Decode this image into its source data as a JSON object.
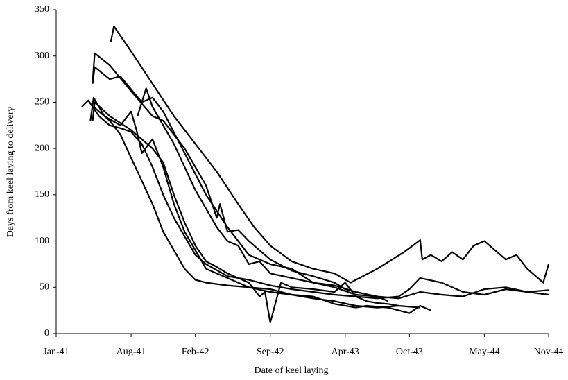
{
  "chart_data": {
    "type": "line",
    "x_label": "Date of keel laying",
    "y_label": "Days from keel laying to delivery",
    "color": "#000000",
    "xlim": [
      0,
      46
    ],
    "xticks": [
      {
        "value": 0,
        "label": "Jan-41"
      },
      {
        "value": 7,
        "label": "Aug-41"
      },
      {
        "value": 13,
        "label": "Feb-42"
      },
      {
        "value": 20,
        "label": "Sep-42"
      },
      {
        "value": 27,
        "label": "Apr-43"
      },
      {
        "value": 33,
        "label": "Oct-43"
      },
      {
        "value": 40,
        "label": "May-44"
      },
      {
        "value": 46,
        "label": "Nov-44"
      }
    ],
    "ylim": [
      0,
      350
    ],
    "yticks": [
      0,
      50,
      100,
      150,
      200,
      250,
      300,
      350
    ],
    "series": [
      {
        "x": [
          5.1,
          5.4,
          7,
          9,
          11,
          13,
          15,
          17,
          18.5,
          20,
          22,
          24,
          26,
          27.5,
          30,
          32.5,
          34,
          34.2,
          35,
          36,
          37,
          38,
          39,
          40,
          41,
          42,
          43,
          44,
          45,
          45.5,
          46
        ],
        "values": [
          315,
          332,
          305,
          270,
          235,
          205,
          175,
          140,
          115,
          95,
          78,
          70,
          65,
          55,
          70,
          88,
          101,
          80,
          85,
          78,
          88,
          80,
          95,
          100,
          90,
          80,
          85,
          70,
          60,
          55,
          75
        ]
      },
      {
        "x": [
          3.4,
          3.6,
          5,
          7,
          9,
          10,
          12,
          14,
          15,
          15.3,
          16,
          17,
          18,
          20,
          22,
          24,
          26,
          27,
          28
        ],
        "values": [
          272,
          303,
          290,
          262,
          235,
          230,
          200,
          160,
          125,
          140,
          110,
          112,
          100,
          80,
          68,
          62,
          55,
          48,
          45
        ]
      },
      {
        "x": [
          3.4,
          3.6,
          5,
          6,
          8,
          9,
          10,
          12,
          14,
          16,
          18,
          20,
          22,
          24,
          26,
          28,
          30,
          31
        ],
        "values": [
          270,
          288,
          275,
          278,
          250,
          255,
          240,
          195,
          150,
          115,
          85,
          75,
          70,
          55,
          52,
          45,
          40,
          35
        ]
      },
      {
        "x": [
          2.4,
          3,
          4,
          5,
          6,
          7,
          8,
          9,
          10,
          11,
          12,
          13,
          14,
          16,
          18,
          20,
          22,
          24,
          26,
          28,
          30,
          32,
          33,
          34,
          36,
          38,
          40,
          42,
          44,
          46
        ],
        "values": [
          245,
          252,
          235,
          225,
          222,
          218,
          205,
          180,
          150,
          125,
          105,
          85,
          75,
          62,
          58,
          52,
          48,
          45,
          42,
          40,
          38,
          40,
          48,
          60,
          55,
          45,
          42,
          48,
          45,
          47
        ]
      },
      {
        "x": [
          3.2,
          3.5,
          4.5,
          6,
          7,
          7.5,
          8,
          9,
          10,
          11,
          12,
          13,
          14,
          16,
          18,
          20,
          22,
          24,
          26,
          28,
          29,
          31,
          33,
          34,
          35
        ],
        "values": [
          230,
          255,
          235,
          225,
          240,
          220,
          195,
          210,
          180,
          140,
          110,
          90,
          70,
          60,
          50,
          48,
          42,
          40,
          32,
          28,
          30,
          28,
          22,
          30,
          25
        ]
      },
      {
        "x": [
          3.5,
          5,
          6,
          7,
          8,
          9,
          10,
          11,
          12,
          13,
          14,
          16,
          18,
          20,
          22,
          24,
          26,
          28,
          30,
          32,
          34
        ],
        "values": [
          245,
          230,
          215,
          190,
          165,
          140,
          110,
          90,
          70,
          58,
          55,
          52,
          50,
          45,
          42,
          38,
          35,
          30,
          28,
          30,
          28
        ]
      },
      {
        "x": [
          7.6,
          8.4,
          9,
          10,
          11,
          12,
          13,
          14,
          15,
          16,
          17,
          18,
          19,
          20,
          22,
          24,
          26,
          28,
          30,
          32,
          34,
          36,
          38,
          40,
          42,
          44,
          46
        ],
        "values": [
          235,
          265,
          245,
          225,
          205,
          180,
          155,
          135,
          115,
          100,
          95,
          75,
          78,
          65,
          60,
          55,
          50,
          42,
          40,
          38,
          45,
          42,
          40,
          48,
          50,
          45,
          42
        ]
      },
      {
        "x": [
          3.4,
          3.6,
          5,
          7,
          9,
          10,
          11,
          12,
          13,
          14,
          15,
          16,
          17,
          18,
          19,
          19.5,
          20,
          21,
          22,
          24,
          26,
          27,
          28,
          29,
          30,
          31,
          32
        ],
        "values": [
          230,
          250,
          235,
          220,
          200,
          185,
          150,
          120,
          95,
          78,
          72,
          65,
          60,
          55,
          40,
          45,
          12,
          55,
          50,
          48,
          45,
          55,
          40,
          35,
          33,
          32,
          30
        ]
      }
    ]
  }
}
